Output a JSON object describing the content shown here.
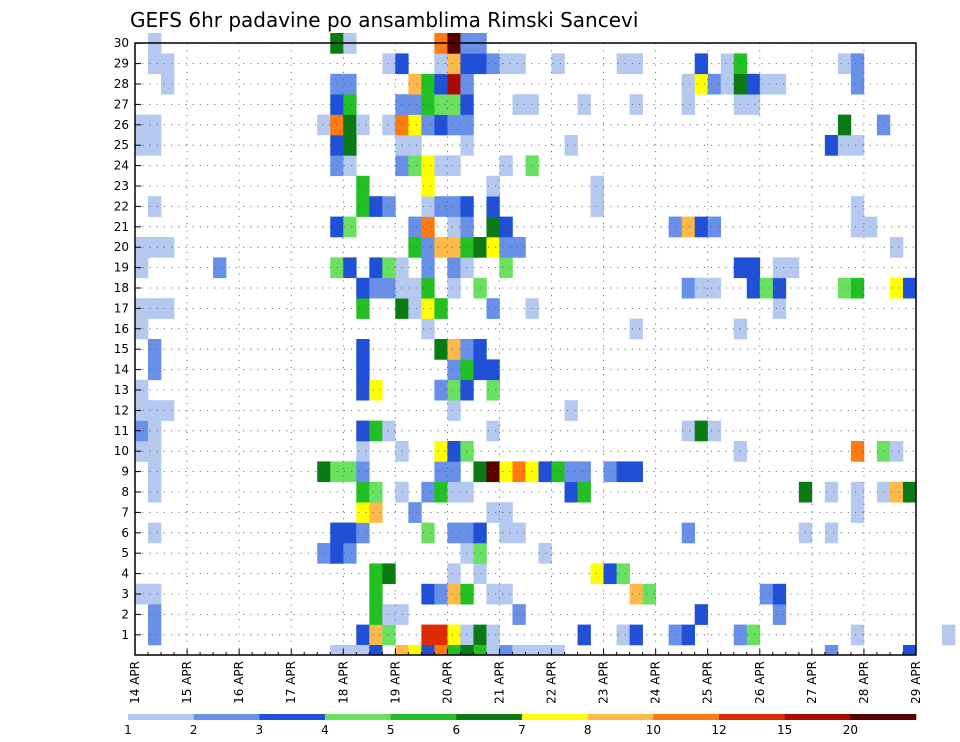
{
  "chart_data": {
    "type": "heatmap",
    "title": "GEFS 6hr padavine po ansamblima Rimski Sancevi",
    "xlabel": "",
    "ylabel": "",
    "x_tick_labels": [
      "14 APR",
      "15 APR",
      "16 APR",
      "17 APR",
      "18 APR",
      "19 APR",
      "20 APR",
      "21 APR",
      "22 APR",
      "23 APR",
      "24 APR",
      "25 APR",
      "26 APR",
      "27 APR",
      "28 APR",
      "29 APR"
    ],
    "y_tick_labels": [
      "1",
      "2",
      "3",
      "4",
      "5",
      "6",
      "7",
      "8",
      "9",
      "10",
      "11",
      "12",
      "13",
      "14",
      "15",
      "16",
      "17",
      "18",
      "19",
      "20",
      "21",
      "22",
      "23",
      "24",
      "25",
      "26",
      "27",
      "28",
      "29",
      "30"
    ],
    "ylim": [
      0,
      30
    ],
    "x_days": 15,
    "steps_per_day": 4,
    "grid": true,
    "legend": {
      "position": "bottom",
      "thresholds": [
        "1",
        "2",
        "3",
        "4",
        "5",
        "6",
        "7",
        "8",
        "10",
        "12",
        "15",
        "20"
      ],
      "colors": [
        "#b4c8f0",
        "#6890e8",
        "#2050d8",
        "#6ae060",
        "#22c022",
        "#0a7a14",
        "#ffff00",
        "#ffb84a",
        "#ff7a10",
        "#e02a00",
        "#a80a00",
        "#5a0000"
      ]
    },
    "cells": [
      [
        1,
        1,
        2
      ],
      [
        1,
        17,
        3
      ],
      [
        1,
        18,
        8
      ],
      [
        1,
        19,
        4
      ],
      [
        1,
        22,
        10
      ],
      [
        1,
        23,
        10
      ],
      [
        1,
        24,
        7
      ],
      [
        1,
        25,
        1
      ],
      [
        1,
        26,
        6
      ],
      [
        1,
        27,
        1
      ],
      [
        1,
        34,
        3
      ],
      [
        1,
        37,
        1
      ],
      [
        1,
        38,
        3
      ],
      [
        1,
        41,
        2
      ],
      [
        1,
        42,
        3
      ],
      [
        1,
        46,
        2
      ],
      [
        1,
        47,
        4
      ],
      [
        1,
        55,
        1
      ],
      [
        1,
        62,
        1
      ],
      [
        2,
        1,
        2
      ],
      [
        2,
        18,
        5
      ],
      [
        2,
        19,
        1
      ],
      [
        2,
        20,
        1
      ],
      [
        2,
        29,
        2
      ],
      [
        2,
        43,
        3
      ],
      [
        2,
        49,
        2
      ],
      [
        3,
        0,
        1
      ],
      [
        3,
        1,
        1
      ],
      [
        3,
        18,
        5
      ],
      [
        3,
        22,
        3
      ],
      [
        3,
        23,
        2
      ],
      [
        3,
        24,
        8
      ],
      [
        3,
        25,
        5
      ],
      [
        3,
        27,
        1
      ],
      [
        3,
        28,
        1
      ],
      [
        3,
        38,
        8
      ],
      [
        3,
        39,
        4
      ],
      [
        3,
        48,
        2
      ],
      [
        3,
        49,
        3
      ],
      [
        4,
        18,
        5
      ],
      [
        4,
        19,
        6
      ],
      [
        4,
        24,
        1
      ],
      [
        4,
        26,
        1
      ],
      [
        4,
        35,
        7
      ],
      [
        4,
        36,
        3
      ],
      [
        4,
        37,
        4
      ],
      [
        5,
        14,
        2
      ],
      [
        5,
        15,
        3
      ],
      [
        5,
        16,
        2
      ],
      [
        5,
        25,
        1
      ],
      [
        5,
        26,
        4
      ],
      [
        5,
        31,
        1
      ],
      [
        6,
        1,
        1
      ],
      [
        6,
        15,
        3
      ],
      [
        6,
        16,
        3
      ],
      [
        6,
        17,
        2
      ],
      [
        6,
        22,
        4
      ],
      [
        6,
        24,
        2
      ],
      [
        6,
        25,
        2
      ],
      [
        6,
        26,
        3
      ],
      [
        6,
        28,
        1
      ],
      [
        6,
        29,
        1
      ],
      [
        6,
        42,
        2
      ],
      [
        6,
        51,
        1
      ],
      [
        6,
        53,
        1
      ],
      [
        7,
        17,
        7
      ],
      [
        7,
        18,
        8
      ],
      [
        7,
        21,
        2
      ],
      [
        7,
        27,
        1
      ],
      [
        7,
        28,
        1
      ],
      [
        7,
        55,
        1
      ],
      [
        8,
        1,
        1
      ],
      [
        8,
        17,
        5
      ],
      [
        8,
        18,
        4
      ],
      [
        8,
        20,
        1
      ],
      [
        8,
        22,
        2
      ],
      [
        8,
        23,
        5
      ],
      [
        8,
        24,
        1
      ],
      [
        8,
        25,
        1
      ],
      [
        8,
        33,
        3
      ],
      [
        8,
        34,
        5
      ],
      [
        8,
        51,
        6
      ],
      [
        8,
        53,
        1
      ],
      [
        8,
        55,
        1
      ],
      [
        8,
        57,
        1
      ],
      [
        8,
        58,
        8
      ],
      [
        8,
        59,
        6
      ],
      [
        9,
        1,
        1
      ],
      [
        9,
        14,
        6
      ],
      [
        9,
        15,
        4
      ],
      [
        9,
        16,
        4
      ],
      [
        9,
        17,
        2
      ],
      [
        9,
        23,
        2
      ],
      [
        9,
        24,
        2
      ],
      [
        9,
        26,
        6
      ],
      [
        9,
        27,
        12
      ],
      [
        9,
        28,
        7
      ],
      [
        9,
        29,
        9
      ],
      [
        9,
        30,
        7
      ],
      [
        9,
        31,
        3
      ],
      [
        9,
        32,
        5
      ],
      [
        9,
        33,
        2
      ],
      [
        9,
        34,
        2
      ],
      [
        9,
        36,
        2
      ],
      [
        9,
        37,
        3
      ],
      [
        9,
        38,
        3
      ],
      [
        10,
        0,
        1
      ],
      [
        10,
        1,
        1
      ],
      [
        10,
        17,
        1
      ],
      [
        10,
        20,
        1
      ],
      [
        10,
        23,
        7
      ],
      [
        10,
        24,
        3
      ],
      [
        10,
        25,
        4
      ],
      [
        10,
        46,
        1
      ],
      [
        10,
        55,
        9
      ],
      [
        10,
        57,
        4
      ],
      [
        10,
        58,
        1
      ],
      [
        11,
        0,
        2
      ],
      [
        11,
        1,
        1
      ],
      [
        11,
        17,
        3
      ],
      [
        11,
        18,
        5
      ],
      [
        11,
        19,
        1
      ],
      [
        11,
        27,
        1
      ],
      [
        11,
        42,
        1
      ],
      [
        11,
        43,
        6
      ],
      [
        11,
        44,
        1
      ],
      [
        12,
        0,
        1
      ],
      [
        12,
        1,
        1
      ],
      [
        12,
        2,
        1
      ],
      [
        12,
        24,
        1
      ],
      [
        12,
        33,
        1
      ],
      [
        13,
        0,
        1
      ],
      [
        13,
        17,
        3
      ],
      [
        13,
        18,
        7
      ],
      [
        13,
        23,
        2
      ],
      [
        13,
        24,
        4
      ],
      [
        13,
        25,
        3
      ],
      [
        13,
        27,
        4
      ],
      [
        14,
        1,
        2
      ],
      [
        14,
        17,
        3
      ],
      [
        14,
        24,
        2
      ],
      [
        14,
        25,
        5
      ],
      [
        14,
        26,
        3
      ],
      [
        14,
        27,
        3
      ],
      [
        15,
        1,
        2
      ],
      [
        15,
        17,
        3
      ],
      [
        15,
        23,
        6
      ],
      [
        15,
        24,
        8
      ],
      [
        15,
        25,
        2
      ],
      [
        15,
        26,
        3
      ],
      [
        16,
        0,
        1
      ],
      [
        16,
        22,
        1
      ],
      [
        16,
        38,
        1
      ],
      [
        16,
        46,
        1
      ],
      [
        17,
        0,
        1
      ],
      [
        17,
        1,
        1
      ],
      [
        17,
        2,
        1
      ],
      [
        17,
        17,
        5
      ],
      [
        17,
        20,
        6
      ],
      [
        17,
        21,
        1
      ],
      [
        17,
        22,
        7
      ],
      [
        17,
        23,
        5
      ],
      [
        17,
        27,
        2
      ],
      [
        17,
        30,
        1
      ],
      [
        17,
        49,
        1
      ],
      [
        18,
        17,
        3
      ],
      [
        18,
        18,
        2
      ],
      [
        18,
        19,
        2
      ],
      [
        18,
        20,
        1
      ],
      [
        18,
        21,
        1
      ],
      [
        18,
        22,
        5
      ],
      [
        18,
        24,
        1
      ],
      [
        18,
        26,
        4
      ],
      [
        18,
        42,
        2
      ],
      [
        18,
        43,
        1
      ],
      [
        18,
        44,
        1
      ],
      [
        18,
        47,
        3
      ],
      [
        18,
        48,
        4
      ],
      [
        18,
        49,
        3
      ],
      [
        18,
        54,
        4
      ],
      [
        18,
        55,
        5
      ],
      [
        18,
        58,
        7
      ],
      [
        18,
        59,
        3
      ],
      [
        19,
        0,
        1
      ],
      [
        19,
        6,
        2
      ],
      [
        19,
        15,
        4
      ],
      [
        19,
        16,
        3
      ],
      [
        19,
        18,
        3
      ],
      [
        19,
        19,
        4
      ],
      [
        19,
        20,
        1
      ],
      [
        19,
        22,
        2
      ],
      [
        19,
        24,
        2
      ],
      [
        19,
        25,
        1
      ],
      [
        19,
        28,
        4
      ],
      [
        19,
        46,
        3
      ],
      [
        19,
        47,
        3
      ],
      [
        19,
        49,
        1
      ],
      [
        19,
        50,
        1
      ],
      [
        20,
        0,
        1
      ],
      [
        20,
        1,
        1
      ],
      [
        20,
        2,
        1
      ],
      [
        20,
        21,
        5
      ],
      [
        20,
        22,
        2
      ],
      [
        20,
        23,
        8
      ],
      [
        20,
        24,
        8
      ],
      [
        20,
        25,
        5
      ],
      [
        20,
        26,
        6
      ],
      [
        20,
        27,
        7
      ],
      [
        20,
        28,
        2
      ],
      [
        20,
        29,
        2
      ],
      [
        20,
        58,
        1
      ],
      [
        21,
        15,
        3
      ],
      [
        21,
        16,
        4
      ],
      [
        21,
        21,
        2
      ],
      [
        21,
        22,
        9
      ],
      [
        21,
        24,
        1
      ],
      [
        21,
        25,
        2
      ],
      [
        21,
        27,
        6
      ],
      [
        21,
        28,
        3
      ],
      [
        21,
        41,
        2
      ],
      [
        21,
        42,
        8
      ],
      [
        21,
        43,
        3
      ],
      [
        21,
        44,
        2
      ],
      [
        21,
        55,
        1
      ],
      [
        21,
        56,
        1
      ],
      [
        22,
        1,
        1
      ],
      [
        22,
        17,
        5
      ],
      [
        22,
        18,
        3
      ],
      [
        22,
        19,
        2
      ],
      [
        22,
        22,
        1
      ],
      [
        22,
        23,
        2
      ],
      [
        22,
        24,
        2
      ],
      [
        22,
        25,
        3
      ],
      [
        22,
        27,
        3
      ],
      [
        22,
        35,
        1
      ],
      [
        22,
        55,
        1
      ],
      [
        23,
        17,
        5
      ],
      [
        23,
        22,
        7
      ],
      [
        23,
        27,
        1
      ],
      [
        23,
        35,
        1
      ],
      [
        24,
        15,
        2
      ],
      [
        24,
        16,
        1
      ],
      [
        24,
        20,
        2
      ],
      [
        24,
        21,
        4
      ],
      [
        24,
        22,
        7
      ],
      [
        24,
        23,
        1
      ],
      [
        24,
        24,
        1
      ],
      [
        24,
        28,
        1
      ],
      [
        24,
        30,
        4
      ],
      [
        25,
        0,
        1
      ],
      [
        25,
        1,
        1
      ],
      [
        25,
        15,
        3
      ],
      [
        25,
        16,
        6
      ],
      [
        25,
        20,
        1
      ],
      [
        25,
        21,
        1
      ],
      [
        25,
        25,
        1
      ],
      [
        25,
        33,
        1
      ],
      [
        25,
        53,
        3
      ],
      [
        25,
        54,
        1
      ],
      [
        25,
        55,
        1
      ],
      [
        26,
        0,
        1
      ],
      [
        26,
        1,
        1
      ],
      [
        26,
        14,
        1
      ],
      [
        26,
        15,
        9
      ],
      [
        26,
        16,
        6
      ],
      [
        26,
        17,
        1
      ],
      [
        26,
        19,
        1
      ],
      [
        26,
        20,
        9
      ],
      [
        26,
        21,
        7
      ],
      [
        26,
        22,
        2
      ],
      [
        26,
        23,
        3
      ],
      [
        26,
        24,
        2
      ],
      [
        26,
        25,
        2
      ],
      [
        26,
        54,
        6
      ],
      [
        26,
        57,
        2
      ],
      [
        27,
        15,
        3
      ],
      [
        27,
        16,
        5
      ],
      [
        27,
        20,
        2
      ],
      [
        27,
        21,
        2
      ],
      [
        27,
        22,
        5
      ],
      [
        27,
        23,
        4
      ],
      [
        27,
        24,
        4
      ],
      [
        27,
        25,
        3
      ],
      [
        27,
        29,
        1
      ],
      [
        27,
        30,
        1
      ],
      [
        27,
        34,
        1
      ],
      [
        27,
        38,
        1
      ],
      [
        27,
        42,
        1
      ],
      [
        27,
        46,
        1
      ],
      [
        27,
        47,
        1
      ],
      [
        28,
        2,
        1
      ],
      [
        28,
        15,
        2
      ],
      [
        28,
        16,
        2
      ],
      [
        28,
        21,
        8
      ],
      [
        28,
        22,
        5
      ],
      [
        28,
        23,
        3
      ],
      [
        28,
        24,
        11
      ],
      [
        28,
        25,
        2
      ],
      [
        28,
        42,
        1
      ],
      [
        28,
        43,
        7
      ],
      [
        28,
        44,
        2
      ],
      [
        28,
        45,
        1
      ],
      [
        28,
        46,
        6
      ],
      [
        28,
        47,
        3
      ],
      [
        28,
        48,
        1
      ],
      [
        28,
        49,
        1
      ],
      [
        28,
        55,
        2
      ],
      [
        29,
        1,
        1
      ],
      [
        29,
        2,
        1
      ],
      [
        29,
        19,
        1
      ],
      [
        29,
        20,
        3
      ],
      [
        29,
        23,
        1
      ],
      [
        29,
        24,
        8
      ],
      [
        29,
        25,
        3
      ],
      [
        29,
        26,
        3
      ],
      [
        29,
        27,
        2
      ],
      [
        29,
        28,
        1
      ],
      [
        29,
        29,
        1
      ],
      [
        29,
        32,
        1
      ],
      [
        29,
        37,
        1
      ],
      [
        29,
        38,
        1
      ],
      [
        29,
        43,
        3
      ],
      [
        29,
        45,
        1
      ],
      [
        29,
        46,
        5
      ],
      [
        29,
        54,
        1
      ],
      [
        29,
        55,
        2
      ],
      [
        30,
        1,
        1
      ],
      [
        30,
        15,
        6
      ],
      [
        30,
        16,
        1
      ],
      [
        30,
        23,
        9
      ],
      [
        30,
        24,
        12
      ],
      [
        30,
        25,
        2
      ],
      [
        30,
        26,
        2
      ]
    ],
    "bottom_strip": [
      [
        15,
        1
      ],
      [
        16,
        1
      ],
      [
        17,
        1
      ],
      [
        18,
        3
      ],
      [
        20,
        8
      ],
      [
        21,
        7
      ],
      [
        22,
        3
      ],
      [
        23,
        9
      ],
      [
        24,
        5
      ],
      [
        25,
        6
      ],
      [
        26,
        5
      ],
      [
        27,
        1
      ],
      [
        28,
        2
      ],
      [
        29,
        1
      ],
      [
        30,
        1
      ],
      [
        31,
        1
      ],
      [
        32,
        1
      ],
      [
        53,
        2
      ],
      [
        59,
        3
      ]
    ]
  }
}
